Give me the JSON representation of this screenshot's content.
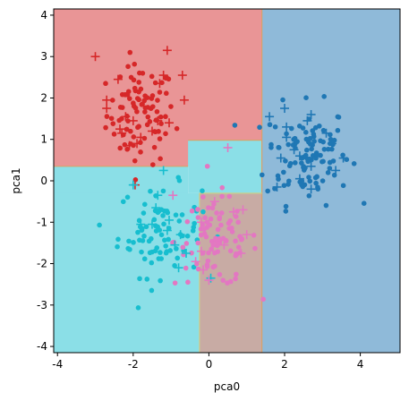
{
  "chart_data": {
    "type": "scatter",
    "xlabel": "pca0",
    "ylabel": "pca1",
    "xlim": [
      -4.1,
      5.05
    ],
    "ylim": [
      -4.15,
      4.15
    ],
    "xticks": [
      "-4",
      "-2",
      "0",
      "2",
      "4"
    ],
    "xtick_values": [
      -4,
      -2,
      0,
      2,
      4
    ],
    "yticks": [
      "-4",
      "-3",
      "-2",
      "-1",
      "0",
      "1",
      "2",
      "3",
      "4"
    ],
    "ytick_values": [
      -4,
      -3,
      -2,
      -1,
      0,
      1,
      2,
      3,
      4
    ],
    "colors": {
      "red": "#d62728",
      "blue": "#1f77b4",
      "cyan": "#17becf",
      "pink": "#e377c2",
      "region_red": "#e99596",
      "region_blue": "#8fbad9",
      "region_cyan": "#8bdfe7",
      "region_pink": "#c8aba4"
    },
    "regions": [
      {
        "cls": "red",
        "x0": -4.1,
        "x1": 1.4,
        "y0": 0.35,
        "y1": 4.15
      },
      {
        "cls": "red",
        "x0": -0.55,
        "x1": 1.4,
        "y0": 0.98,
        "y1": 4.15
      },
      {
        "cls": "cyan",
        "x0": -4.1,
        "x1": -0.55,
        "y0": -4.15,
        "y1": 0.35
      },
      {
        "cls": "cyan",
        "x0": -0.55,
        "x1": 1.4,
        "y0": -0.3,
        "y1": 0.98
      },
      {
        "cls": "cyan",
        "x0": -4.1,
        "x1": -0.25,
        "y0": -4.15,
        "y1": -0.3
      },
      {
        "cls": "pink",
        "x0": -0.25,
        "x1": 1.4,
        "y0": -4.15,
        "y1": -0.3
      },
      {
        "cls": "blue",
        "x0": 1.4,
        "x1": 5.05,
        "y0": -4.15,
        "y1": 4.15
      }
    ],
    "clusters": [
      {
        "cls": "red",
        "cx": -1.8,
        "cy": 1.6,
        "sx": 0.45,
        "sy": 0.6,
        "n": 95
      },
      {
        "cls": "blue",
        "cx": 2.6,
        "cy": 0.65,
        "sx": 0.55,
        "sy": 0.6,
        "n": 110
      },
      {
        "cls": "cyan",
        "cx": -1.3,
        "cy": -1.2,
        "sx": 0.55,
        "sy": 0.55,
        "n": 85
      },
      {
        "cls": "pink",
        "cx": 0.2,
        "cy": -1.45,
        "sx": 0.55,
        "sy": 0.55,
        "n": 90
      }
    ],
    "test_points": [
      {
        "cls": "red",
        "x": -3.0,
        "y": 3.0
      },
      {
        "cls": "red",
        "x": -1.1,
        "y": 3.15
      },
      {
        "cls": "red",
        "x": -1.2,
        "y": 2.55
      },
      {
        "cls": "red",
        "x": -0.7,
        "y": 2.55
      },
      {
        "cls": "red",
        "x": -2.4,
        "y": 2.45
      },
      {
        "cls": "red",
        "x": -1.3,
        "y": 2.35
      },
      {
        "cls": "red",
        "x": -0.65,
        "y": 1.95
      },
      {
        "cls": "red",
        "x": -2.7,
        "y": 1.95
      },
      {
        "cls": "red",
        "x": -2.7,
        "y": 1.75
      },
      {
        "cls": "red",
        "x": -2.2,
        "y": 1.55
      },
      {
        "cls": "red",
        "x": -2.0,
        "y": 1.45
      },
      {
        "cls": "red",
        "x": -1.35,
        "y": 1.45
      },
      {
        "cls": "red",
        "x": -1.05,
        "y": 1.4
      },
      {
        "cls": "red",
        "x": -2.3,
        "y": 1.15
      },
      {
        "cls": "red",
        "x": -2.35,
        "y": 1.25
      },
      {
        "cls": "red",
        "x": -1.8,
        "y": 1.05
      },
      {
        "cls": "red",
        "x": -1.5,
        "y": 1.2
      },
      {
        "cls": "red",
        "x": -2.1,
        "y": 0.85
      },
      {
        "cls": "red",
        "x": -1.9,
        "y": 0.9
      },
      {
        "cls": "red",
        "x": -1.95,
        "y": -0.1
      },
      {
        "cls": "blue",
        "x": 2.0,
        "y": 1.75
      },
      {
        "cls": "blue",
        "x": 2.7,
        "y": 1.6
      },
      {
        "cls": "blue",
        "x": 1.6,
        "y": 1.55
      },
      {
        "cls": "blue",
        "x": 2.6,
        "y": 1.45
      },
      {
        "cls": "blue",
        "x": 2.05,
        "y": 1.3
      },
      {
        "cls": "blue",
        "x": 3.1,
        "y": 1.15
      },
      {
        "cls": "blue",
        "x": 2.05,
        "y": 1.05
      },
      {
        "cls": "blue",
        "x": 3.25,
        "y": 0.9
      },
      {
        "cls": "blue",
        "x": 2.25,
        "y": 0.75
      },
      {
        "cls": "blue",
        "x": 2.4,
        "y": 0.6
      },
      {
        "cls": "blue",
        "x": 1.9,
        "y": 0.55
      },
      {
        "cls": "blue",
        "x": 3.55,
        "y": 0.55
      },
      {
        "cls": "blue",
        "x": 2.7,
        "y": 0.35
      },
      {
        "cls": "blue",
        "x": 3.35,
        "y": 0.25
      },
      {
        "cls": "blue",
        "x": 2.4,
        "y": 0.05
      },
      {
        "cls": "blue",
        "x": 1.8,
        "y": -0.15
      },
      {
        "cls": "blue",
        "x": 2.7,
        "y": -0.2
      },
      {
        "cls": "cyan",
        "x": -1.2,
        "y": 0.25
      },
      {
        "cls": "cyan",
        "x": -1.35,
        "y": -0.35
      },
      {
        "cls": "cyan",
        "x": -2.0,
        "y": -0.1
      },
      {
        "cls": "cyan",
        "x": -1.4,
        "y": -0.65
      },
      {
        "cls": "cyan",
        "x": -1.05,
        "y": -0.95
      },
      {
        "cls": "cyan",
        "x": -1.5,
        "y": -1.05
      },
      {
        "cls": "cyan",
        "x": -1.8,
        "y": -1.05
      },
      {
        "cls": "cyan",
        "x": -1.1,
        "y": -1.2
      },
      {
        "cls": "cyan",
        "x": -0.75,
        "y": -1.3
      },
      {
        "cls": "cyan",
        "x": -0.6,
        "y": -1.75
      },
      {
        "cls": "cyan",
        "x": -0.9,
        "y": -1.55
      },
      {
        "cls": "cyan",
        "x": -0.8,
        "y": -2.1
      },
      {
        "cls": "cyan",
        "x": 0.05,
        "y": -2.35
      },
      {
        "cls": "pink",
        "x": 0.5,
        "y": 0.8
      },
      {
        "cls": "pink",
        "x": -0.95,
        "y": -0.35
      },
      {
        "cls": "pink",
        "x": 0.15,
        "y": -0.5
      },
      {
        "cls": "pink",
        "x": 0.9,
        "y": -0.7
      },
      {
        "cls": "pink",
        "x": 0.65,
        "y": -0.75
      },
      {
        "cls": "pink",
        "x": -0.2,
        "y": -1.0
      },
      {
        "cls": "pink",
        "x": 1.0,
        "y": -1.3
      },
      {
        "cls": "pink",
        "x": 0.2,
        "y": -1.45
      },
      {
        "cls": "pink",
        "x": 0.4,
        "y": -1.55
      },
      {
        "cls": "pink",
        "x": -0.2,
        "y": -1.7
      },
      {
        "cls": "pink",
        "x": 0.85,
        "y": -1.75
      },
      {
        "cls": "pink",
        "x": -0.35,
        "y": -1.95
      },
      {
        "cls": "pink",
        "x": -0.15,
        "y": -2.15
      },
      {
        "cls": "pink",
        "x": 0.0,
        "y": -2.4
      }
    ]
  }
}
